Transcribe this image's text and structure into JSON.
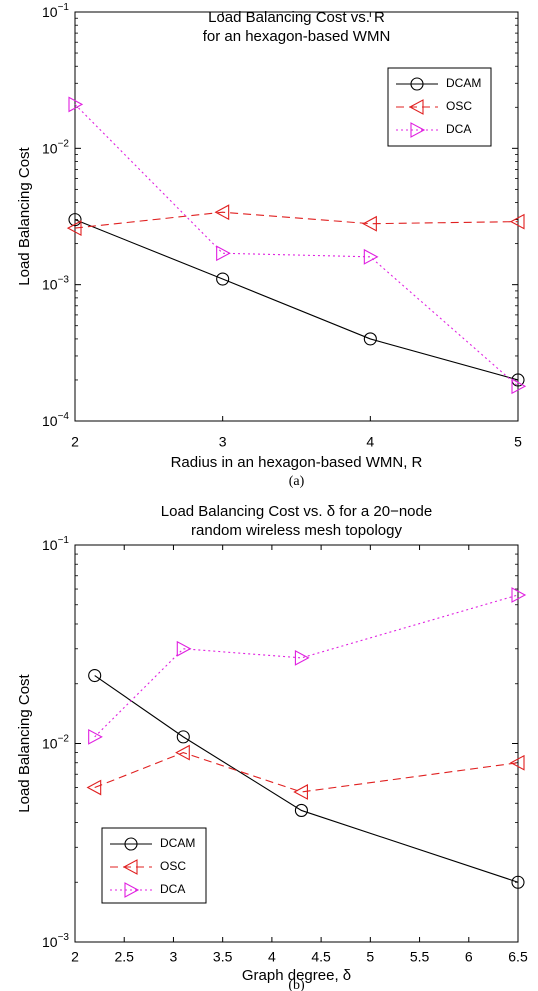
{
  "colors": {
    "dcam": "#000000",
    "osc": "#e02020",
    "dca": "#e020e0",
    "axis": "#000000"
  },
  "chart_data": [
    {
      "type": "line",
      "title_lines": [
        "Load Balancing Cost vs. R",
        "for an hexagon-based WMN"
      ],
      "xlabel": "Radius in an hexagon-based WMN, R",
      "ylabel": "Load Balancing Cost",
      "caption": "(a)",
      "xlim": [
        2,
        5
      ],
      "ylim": [
        0.0001,
        0.1
      ],
      "yscale": "log",
      "xticks": [
        2,
        3,
        4,
        5
      ],
      "xtick_labels": [
        "2",
        "3",
        "4",
        "5"
      ],
      "yticks": [
        0.0001,
        0.001,
        0.01,
        0.1
      ],
      "ytick_labels": [
        {
          "base": "10",
          "exp": "-4"
        },
        {
          "base": "10",
          "exp": "-3"
        },
        {
          "base": "10",
          "exp": "-2"
        },
        {
          "base": "10",
          "exp": "-1"
        }
      ],
      "legend_position": "top-right",
      "series": [
        {
          "name": "DCAM",
          "key": "dcam",
          "marker": "circle",
          "dash": "solid",
          "x": [
            2,
            3,
            4,
            5
          ],
          "y": [
            0.003,
            0.0011,
            0.0004,
            0.0002
          ]
        },
        {
          "name": "OSC",
          "key": "osc",
          "marker": "triangle-left",
          "dash": "dashed",
          "x": [
            2,
            3,
            4,
            5
          ],
          "y": [
            0.0026,
            0.0034,
            0.0028,
            0.0029
          ]
        },
        {
          "name": "DCA",
          "key": "dca",
          "marker": "triangle-right",
          "dash": "dotted",
          "x": [
            2,
            3,
            4,
            5
          ],
          "y": [
            0.021,
            0.0017,
            0.0016,
            0.00018
          ]
        }
      ]
    },
    {
      "type": "line",
      "title_lines": [
        "Load Balancing Cost vs. δ for a 20−node",
        "random wireless mesh topology"
      ],
      "xlabel": "Graph degree, δ",
      "ylabel": "Load Balancing Cost",
      "caption": "(b)",
      "xlim": [
        2,
        6.5
      ],
      "ylim": [
        0.001,
        0.1
      ],
      "yscale": "log",
      "xticks": [
        2,
        2.5,
        3,
        3.5,
        4,
        4.5,
        5,
        5.5,
        6,
        6.5
      ],
      "xtick_labels": [
        "2",
        "2.5",
        "3",
        "3.5",
        "4",
        "4.5",
        "5",
        "5.5",
        "6",
        "6.5"
      ],
      "yticks": [
        0.001,
        0.01,
        0.1
      ],
      "ytick_labels": [
        {
          "base": "10",
          "exp": "-3"
        },
        {
          "base": "10",
          "exp": "-2"
        },
        {
          "base": "10",
          "exp": "-1"
        }
      ],
      "legend_position": "bottom-left",
      "series": [
        {
          "name": "DCAM",
          "key": "dcam",
          "marker": "circle",
          "dash": "solid",
          "x": [
            2.2,
            3.1,
            4.3,
            6.5
          ],
          "y": [
            0.022,
            0.0108,
            0.0046,
            0.002
          ]
        },
        {
          "name": "OSC",
          "key": "osc",
          "marker": "triangle-left",
          "dash": "dashed",
          "x": [
            2.2,
            3.1,
            4.3,
            6.5
          ],
          "y": [
            0.006,
            0.009,
            0.0057,
            0.008
          ]
        },
        {
          "name": "DCA",
          "key": "dca",
          "marker": "triangle-right",
          "dash": "dotted",
          "x": [
            2.2,
            3.1,
            4.3,
            6.5
          ],
          "y": [
            0.0108,
            0.03,
            0.027,
            0.056
          ]
        }
      ]
    }
  ]
}
